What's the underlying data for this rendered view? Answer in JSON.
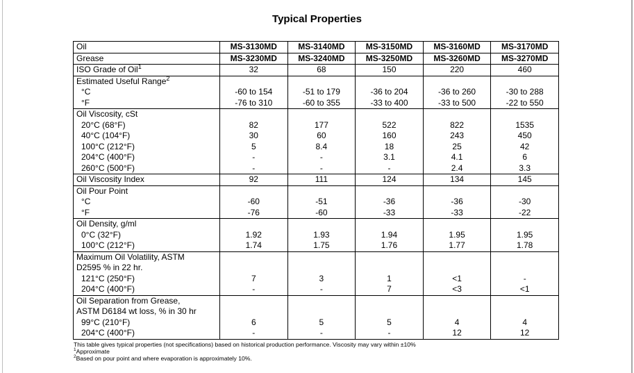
{
  "page": {
    "title": "Typical Properties"
  },
  "table": {
    "sections": [
      {
        "rows": [
          {
            "label": "Oil",
            "bold": true,
            "values": [
              "MS-3130MD",
              "MS-3140MD",
              "MS-3150MD",
              "MS-3160MD",
              "MS-3170MD"
            ]
          }
        ]
      },
      {
        "rows": [
          {
            "label": "Grease",
            "bold": true,
            "values": [
              "MS-3230MD",
              "MS-3240MD",
              "MS-3250MD",
              "MS-3260MD",
              "MS-3270MD"
            ]
          }
        ]
      },
      {
        "rows": [
          {
            "label": "ISO Grade of Oil",
            "sup": "1",
            "values": [
              "32",
              "68",
              "150",
              "220",
              "460"
            ]
          }
        ]
      },
      {
        "header": {
          "label": "Estimated Useful Range",
          "sup": "2"
        },
        "rows": [
          {
            "label": "°C",
            "indent": true,
            "values": [
              "-60 to 154",
              "-51 to 179",
              "-36 to 204",
              "-36 to 260",
              "-30 to 288"
            ]
          },
          {
            "label": "°F",
            "indent": true,
            "values": [
              "-76 to 310",
              "-60 to 355",
              "-33 to 400",
              "-33 to 500",
              "-22 to 550"
            ]
          }
        ]
      },
      {
        "header": {
          "label": "Oil Viscosity, cSt"
        },
        "rows": [
          {
            "label": "20°C (68°F)",
            "indent": true,
            "values": [
              "82",
              "177",
              "522",
              "822",
              "1535"
            ]
          },
          {
            "label": "40°C (104°F)",
            "indent": true,
            "values": [
              "30",
              "60",
              "160",
              "243",
              "450"
            ]
          },
          {
            "label": "100°C (212°F)",
            "indent": true,
            "values": [
              "5",
              "8.4",
              "18",
              "25",
              "42"
            ]
          },
          {
            "label": "204°C (400°F)",
            "indent": true,
            "values": [
              "-",
              "-",
              "3.1",
              "4.1",
              "6"
            ]
          },
          {
            "label": "260°C (500°F)",
            "indent": true,
            "values": [
              "-",
              "-",
              "-",
              "2.4",
              "3.3"
            ]
          }
        ]
      },
      {
        "rows": [
          {
            "label": "Oil Viscosity Index",
            "values": [
              "92",
              "111",
              "124",
              "134",
              "145"
            ]
          }
        ]
      },
      {
        "header": {
          "label": "Oil Pour Point"
        },
        "rows": [
          {
            "label": "°C",
            "indent": true,
            "values": [
              "-60",
              "-51",
              "-36",
              "-36",
              "-30"
            ]
          },
          {
            "label": "°F",
            "indent": true,
            "values": [
              "-76",
              "-60",
              "-33",
              "-33",
              "-22"
            ]
          }
        ]
      },
      {
        "header": {
          "label": "Oil Density, g/ml"
        },
        "rows": [
          {
            "label": "0°C (32°F)",
            "indent": true,
            "values": [
              "1.92",
              "1.93",
              "1.94",
              "1.95",
              "1.95"
            ]
          },
          {
            "label": "100°C (212°F)",
            "indent": true,
            "values": [
              "1.74",
              "1.75",
              "1.76",
              "1.77",
              "1.78"
            ]
          }
        ]
      },
      {
        "header": {
          "label": "Maximum Oil Volatility, ASTM\nD2595 % in 22 hr."
        },
        "rows": [
          {
            "label": "121°C (250°F)",
            "indent": true,
            "values": [
              "7",
              "3",
              "1",
              "<1",
              "-"
            ]
          },
          {
            "label": "204°C (400°F)",
            "indent": true,
            "values": [
              "-",
              "-",
              "7",
              "<3",
              "<1"
            ]
          }
        ]
      },
      {
        "header": {
          "label": "Oil Separation from Grease,\nASTM D6184 wt loss, % in 30 hr"
        },
        "rows": [
          {
            "label": "99°C (210°F)",
            "indent": true,
            "values": [
              "6",
              "5",
              "5",
              "4",
              "4"
            ]
          },
          {
            "label": "204°C (400°F)",
            "indent": true,
            "values": [
              "-",
              "-",
              "-",
              "12",
              "12"
            ]
          }
        ]
      }
    ]
  },
  "footnotes": [
    {
      "sup": "",
      "text": "This table gives typical properties (not specifications) based on historical production performance. Viscosity may vary within ±10%"
    },
    {
      "sup": "1",
      "text": "Approximate"
    },
    {
      "sup": "2",
      "text": "Based on pour point and where evaporation is approximately 10%."
    }
  ]
}
